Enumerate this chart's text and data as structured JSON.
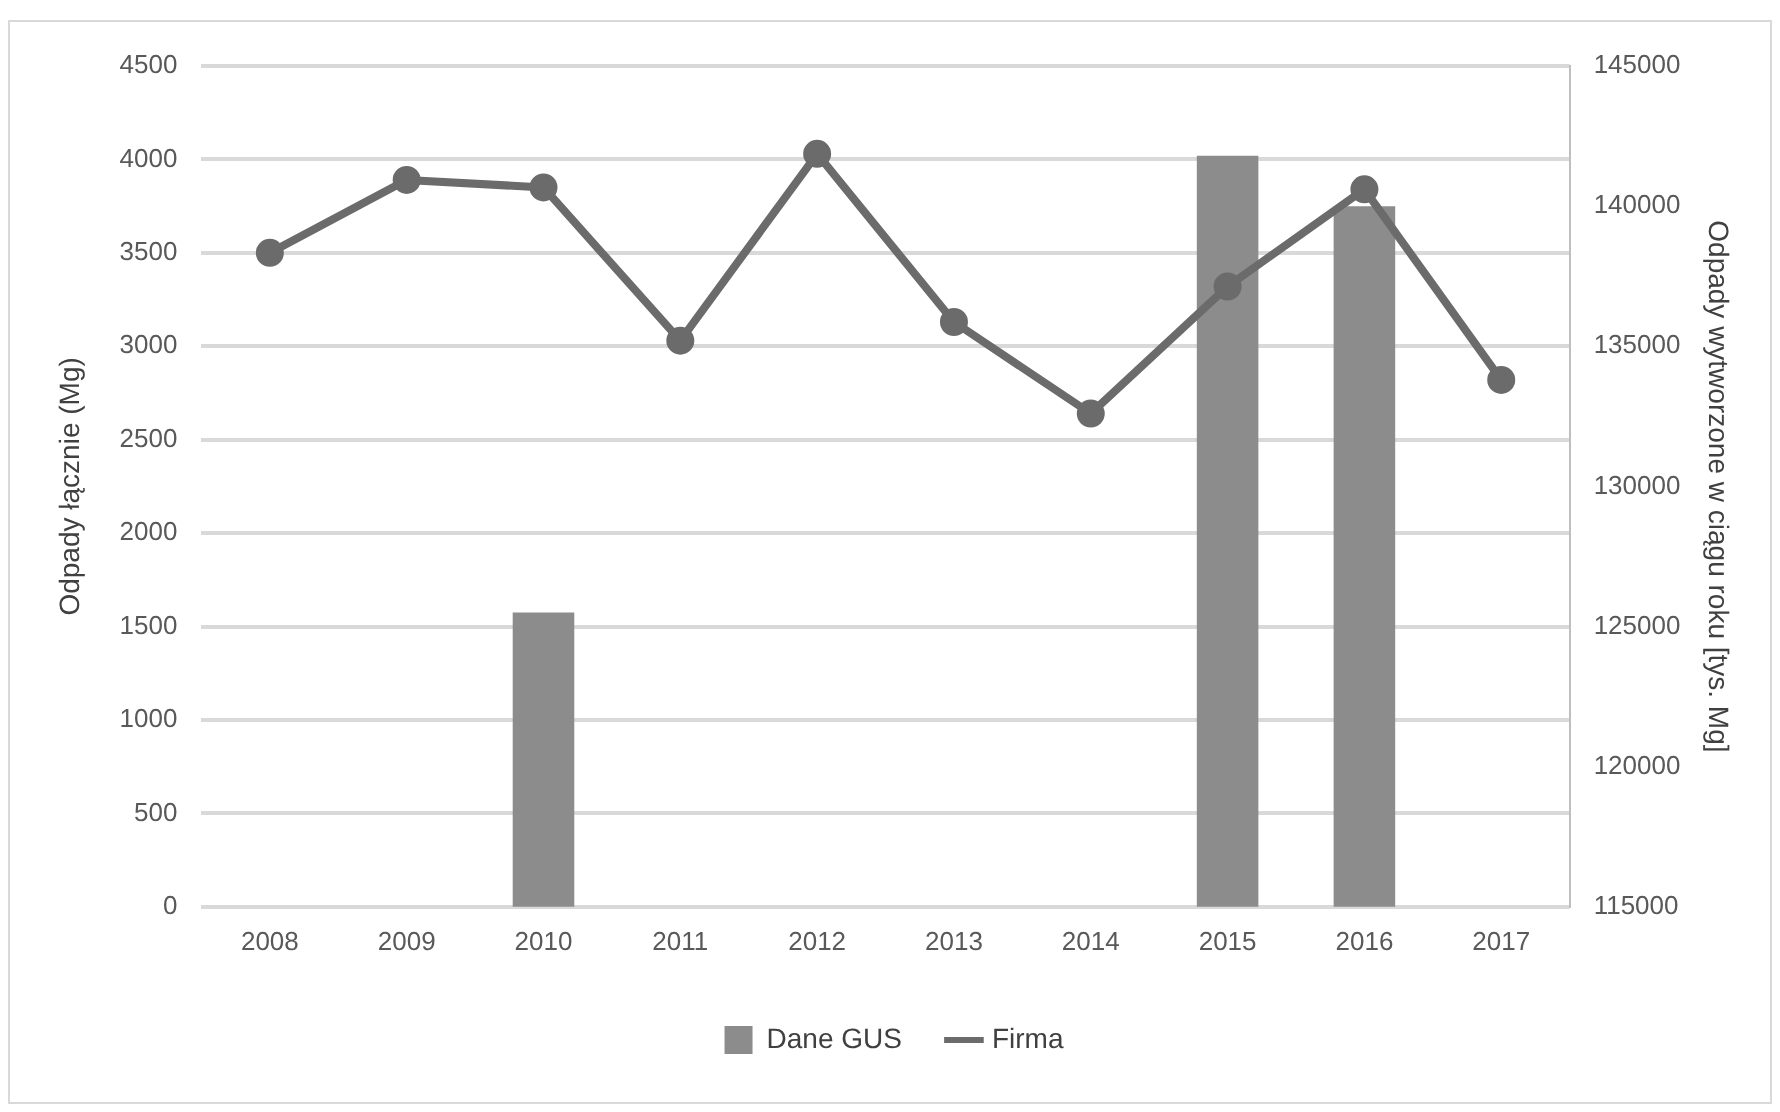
{
  "chart_data": {
    "type": "bar",
    "categories": [
      "2008",
      "2009",
      "2010",
      "2011",
      "2012",
      "2013",
      "2014",
      "2015",
      "2016",
      "2017"
    ],
    "ylabel": "Odpady łącznie (Mg)",
    "y2label": "Odpady wytworzone w ciągu roku [tys. Mg]",
    "series": [
      {
        "name": "Dane GUS",
        "axis": "y2",
        "color": "#8c8c8c",
        "values": [
          null,
          null,
          125500,
          null,
          null,
          null,
          null,
          141800,
          140000,
          null
        ]
      },
      {
        "name": "Firma",
        "type": "line",
        "color": "#6b6b6b",
        "values": [
          3500,
          3890,
          3850,
          3030,
          4030,
          3130,
          2640,
          3320,
          3840,
          2820
        ]
      }
    ],
    "ylim": [
      0,
      4500
    ],
    "yticks": [
      0,
      500,
      1000,
      1500,
      2000,
      2500,
      3000,
      3500,
      4000,
      4500
    ],
    "y2lim": [
      115000,
      145000
    ],
    "y2ticks": [
      115000,
      120000,
      125000,
      130000,
      135000,
      140000,
      145000
    ],
    "grid": "y",
    "legend": "bottom",
    "marker": "circle",
    "line_style": "solid"
  }
}
